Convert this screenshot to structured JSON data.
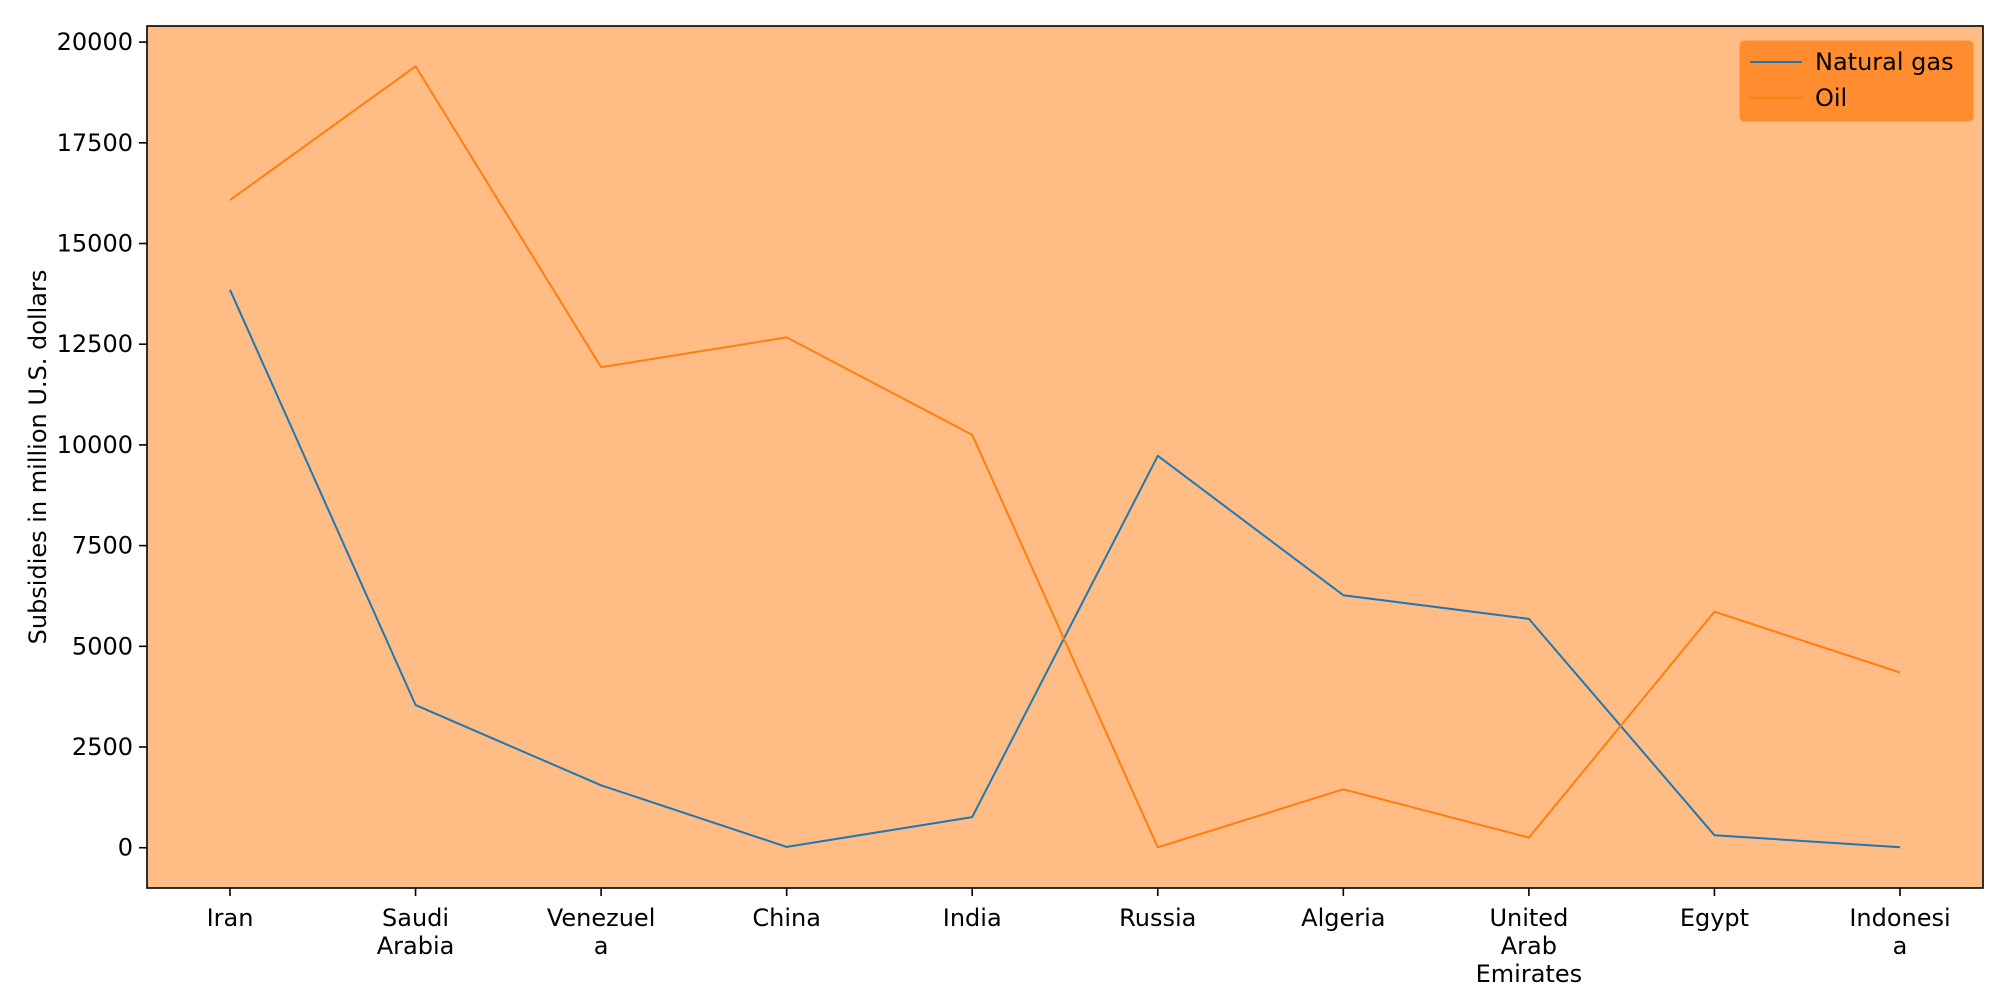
{
  "chart_data": {
    "type": "line",
    "title": "",
    "xlabel": "",
    "ylabel": "Subsidies in million U.S. dollars",
    "categories": [
      [
        "Iran"
      ],
      [
        "Saudi",
        "Arabia"
      ],
      [
        "Venezuel",
        "a"
      ],
      [
        "China"
      ],
      [
        "India"
      ],
      [
        "Russia"
      ],
      [
        "Algeria"
      ],
      [
        "United",
        "Arab",
        "Emirates"
      ],
      [
        "Egypt"
      ],
      [
        "Indonesi",
        "a"
      ]
    ],
    "ylim": [
      -1000,
      20400
    ],
    "yticks": [
      0,
      2500,
      5000,
      7500,
      10000,
      12500,
      15000,
      17500,
      20000
    ],
    "grid": false,
    "legend_position": "top-right",
    "plot_background": "#ffbc85",
    "legend_background": "#ff8c2e",
    "series": [
      {
        "name": "Natural gas",
        "color": "#1f77b4",
        "values": [
          13850,
          3540,
          1550,
          20,
          760,
          9730,
          6270,
          5680,
          310,
          10
        ]
      },
      {
        "name": "Oil",
        "color": "#ff7f0e",
        "values": [
          16080,
          19400,
          11930,
          12670,
          10250,
          10,
          1450,
          250,
          5860,
          4350
        ]
      }
    ]
  }
}
